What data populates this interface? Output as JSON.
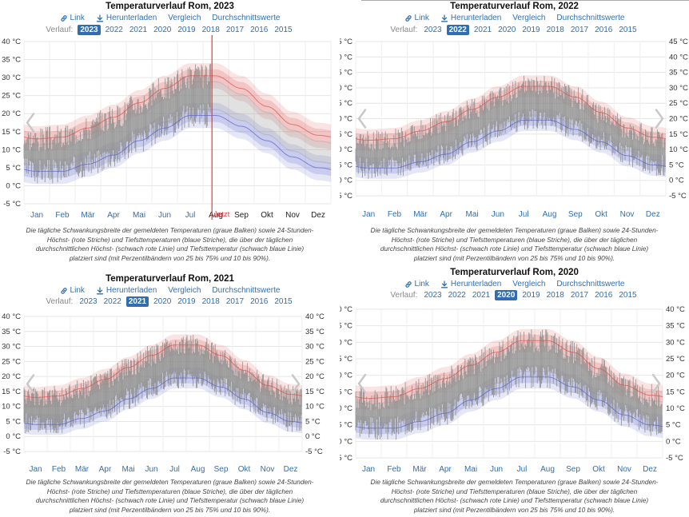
{
  "labels": {
    "link": "Link",
    "download": "Herunterladen",
    "compare": "Vergleich",
    "averages": "Durchschnittswerte",
    "history": "Verlauf:",
    "now": "Jetzt",
    "caption": [
      "Die tägliche Schwankungsbreite der gemeldeten Temperaturen (graue Balken) sowie 24-Stunden-",
      "Höchst- (rote Striche) und Tiefsttemperaturen (blaue Striche), die über der täglichen",
      "durchschnittlichen Höchst- (schwach rote Linie) und Tiefsttemperatur (schwach blaue Linie)",
      "platziert sind (mit Perzentilbändern von 25 bis 75% und 10 bis 90%)."
    ]
  },
  "years": [
    "2023",
    "2022",
    "2021",
    "2020",
    "2019",
    "2018",
    "2017",
    "2016",
    "2015"
  ],
  "months": [
    "Jan",
    "Feb",
    "Mär",
    "Apr",
    "Mai",
    "Jun",
    "Jul",
    "Aug",
    "Sep",
    "Okt",
    "Nov",
    "Dez"
  ],
  "colors": {
    "link": "#2f6fb0",
    "high": "#d9534f",
    "low": "#5b63c8",
    "bars": "#8a8a8a",
    "now_line": "#e53935"
  },
  "panels": [
    {
      "title": "Temperaturverlauf Rom, 2023",
      "selected": "2023"
    },
    {
      "title": "Temperaturverlauf Rom, 2022",
      "selected": "2022"
    },
    {
      "title": "Temperaturverlauf Rom, 2021",
      "selected": "2021"
    },
    {
      "title": "Temperaturverlauf Rom, 2020",
      "selected": "2020"
    }
  ],
  "chart_data": [
    {
      "type": "bar",
      "title": "Temperaturverlauf Rom, 2023",
      "x": [
        "Jan",
        "Feb",
        "Mär",
        "Apr",
        "Mai",
        "Jun",
        "Jul",
        "Aug",
        "Sep",
        "Okt",
        "Nov",
        "Dez"
      ],
      "ylim": [
        -5,
        40
      ],
      "yticks": [
        "-5 °C",
        "0 °C",
        "5 °C",
        "10 °C",
        "15 °C",
        "20 °C",
        "25 °C",
        "30 °C",
        "35 °C",
        "40 °C"
      ],
      "y_axes": [
        "left"
      ],
      "now_month": 7.35,
      "series": [
        {
          "values": [
            13,
            13.5,
            16,
            19,
            23,
            27,
            30.5,
            30.5,
            27,
            22,
            17,
            14
          ]
        },
        {
          "values": [
            4,
            4,
            6,
            8.5,
            12.5,
            16,
            19.5,
            19.5,
            16.5,
            12.5,
            8,
            5
          ]
        }
      ],
      "grid": true
    },
    {
      "type": "bar",
      "title": "Temperaturverlauf Rom, 2022",
      "x": [
        "Jan",
        "Feb",
        "Mär",
        "Apr",
        "Mai",
        "Jun",
        "Jul",
        "Aug",
        "Sep",
        "Okt",
        "Nov",
        "Dez"
      ],
      "ylim": [
        -5,
        45
      ],
      "yticks": [
        "-5 °C",
        "0 °C",
        "5 °C",
        "10 °C",
        "15 °C",
        "20 °C",
        "25 °C",
        "30 °C",
        "35 °C",
        "40 °C",
        "45 °C"
      ],
      "y_axes": [
        "left",
        "right"
      ],
      "series": [
        {
          "values": [
            13,
            13.5,
            16,
            19,
            23,
            27,
            30.5,
            30.5,
            27,
            22,
            17,
            14
          ]
        },
        {
          "values": [
            4,
            4,
            6,
            8.5,
            12.5,
            16,
            19.5,
            19.5,
            16.5,
            12.5,
            8,
            5
          ]
        }
      ],
      "grid": true
    },
    {
      "type": "bar",
      "title": "Temperaturverlauf Rom, 2021",
      "x": [
        "Jan",
        "Feb",
        "Mär",
        "Apr",
        "Mai",
        "Jun",
        "Jul",
        "Aug",
        "Sep",
        "Okt",
        "Nov",
        "Dez"
      ],
      "ylim": [
        -5,
        40
      ],
      "yticks": [
        "-5 °C",
        "0 °C",
        "5 °C",
        "10 °C",
        "15 °C",
        "20 °C",
        "25 °C",
        "30 °C",
        "35 °C",
        "40 °C"
      ],
      "y_axes": [
        "left",
        "right"
      ],
      "series": [
        {
          "values": [
            13,
            13.5,
            16,
            19,
            23,
            27,
            30.5,
            30.5,
            27,
            22,
            17,
            14
          ]
        },
        {
          "values": [
            4,
            4,
            6,
            8.5,
            12.5,
            16,
            19.5,
            19.5,
            16.5,
            12.5,
            8,
            5
          ]
        }
      ],
      "grid": true
    },
    {
      "type": "bar",
      "title": "Temperaturverlauf Rom, 2020",
      "x": [
        "Jan",
        "Feb",
        "Mär",
        "Apr",
        "Mai",
        "Jun",
        "Jul",
        "Aug",
        "Sep",
        "Okt",
        "Nov",
        "Dez"
      ],
      "ylim": [
        -5,
        40
      ],
      "yticks": [
        "-5 °C",
        "0 °C",
        "5 °C",
        "10 °C",
        "15 °C",
        "20 °C",
        "25 °C",
        "30 °C",
        "35 °C",
        "40 °C"
      ],
      "y_axes": [
        "left",
        "right"
      ],
      "series": [
        {
          "values": [
            13,
            13.5,
            16,
            19,
            23,
            27,
            30.5,
            30.5,
            27,
            22,
            17,
            14
          ]
        },
        {
          "values": [
            4,
            4,
            6,
            8.5,
            12.5,
            16,
            19.5,
            19.5,
            16.5,
            12.5,
            8,
            5
          ]
        }
      ],
      "grid": true
    }
  ]
}
